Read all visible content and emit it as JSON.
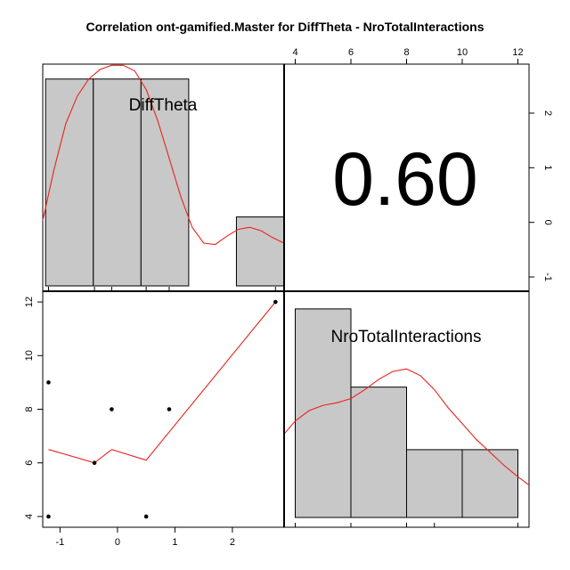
{
  "title": "Correlation ont-gamified.Master for DiffTheta - NroTotalInteractions",
  "colors": {
    "hist_fill": "#c8c8c8",
    "curve": "#e8231f",
    "ink": "#000000"
  },
  "chart_data": {
    "type": "pairs",
    "variables": [
      "DiffTheta",
      "NroTotalInteractions"
    ],
    "correlation": {
      "label": "0.60",
      "value": 0.6
    },
    "axis_ticks": {
      "top": [
        "4",
        "6",
        "8",
        "10",
        "12"
      ],
      "right": [
        "2",
        "1",
        "0",
        "-1"
      ],
      "left": [
        "12",
        "10",
        "8",
        "6",
        "4"
      ],
      "bottom": [
        "-1",
        "0",
        "1",
        "2"
      ]
    },
    "ranges": {
      "DiffTheta": [
        -1.3,
        2.9
      ],
      "NroTotalInteractions": [
        3.6,
        12.4
      ]
    },
    "hist_DiffTheta": {
      "breaks": [
        -1.25,
        -0.42,
        0.41,
        1.24,
        2.07,
        2.9
      ],
      "heights": [
        3,
        3,
        3,
        0,
        1
      ],
      "ymax": 3.1,
      "density": [
        [
          -1.3,
          0.95
        ],
        [
          -1.1,
          1.7
        ],
        [
          -0.9,
          2.35
        ],
        [
          -0.7,
          2.75
        ],
        [
          -0.5,
          3.0
        ],
        [
          -0.3,
          3.14
        ],
        [
          -0.1,
          3.2
        ],
        [
          0.1,
          3.2
        ],
        [
          0.3,
          3.12
        ],
        [
          0.5,
          2.85
        ],
        [
          0.7,
          2.4
        ],
        [
          0.9,
          1.85
        ],
        [
          1.1,
          1.3
        ],
        [
          1.3,
          0.85
        ],
        [
          1.5,
          0.62
        ],
        [
          1.7,
          0.6
        ],
        [
          1.9,
          0.72
        ],
        [
          2.1,
          0.82
        ],
        [
          2.3,
          0.85
        ],
        [
          2.5,
          0.8
        ],
        [
          2.7,
          0.7
        ],
        [
          2.9,
          0.62
        ]
      ]
    },
    "hist_NroTotalInteractions": {
      "breaks": [
        4,
        6,
        8,
        10,
        12
      ],
      "heights": [
        4,
        2.5,
        1.3,
        1.3
      ],
      "ymax": 4.1,
      "density": [
        [
          3.6,
          1.6
        ],
        [
          4.0,
          1.85
        ],
        [
          4.5,
          2.05
        ],
        [
          5.0,
          2.15
        ],
        [
          5.5,
          2.2
        ],
        [
          6.0,
          2.28
        ],
        [
          6.5,
          2.45
        ],
        [
          7.0,
          2.65
        ],
        [
          7.5,
          2.8
        ],
        [
          8.0,
          2.85
        ],
        [
          8.5,
          2.72
        ],
        [
          9.0,
          2.45
        ],
        [
          9.5,
          2.1
        ],
        [
          10.0,
          1.8
        ],
        [
          10.5,
          1.5
        ],
        [
          11.0,
          1.25
        ],
        [
          11.5,
          1.0
        ],
        [
          12.0,
          0.78
        ],
        [
          12.4,
          0.62
        ]
      ]
    },
    "scatter_points": [
      {
        "x": -1.2,
        "y": 9
      },
      {
        "x": -1.2,
        "y": 4
      },
      {
        "x": -0.4,
        "y": 6
      },
      {
        "x": -0.1,
        "y": 8
      },
      {
        "x": 0.5,
        "y": 4
      },
      {
        "x": 0.9,
        "y": 8
      },
      {
        "x": 2.75,
        "y": 12
      }
    ],
    "smooth_line": [
      [
        -1.2,
        6.5
      ],
      [
        -0.4,
        6.0
      ],
      [
        -0.1,
        6.5
      ],
      [
        0.5,
        6.1
      ],
      [
        2.75,
        12.0
      ]
    ]
  }
}
